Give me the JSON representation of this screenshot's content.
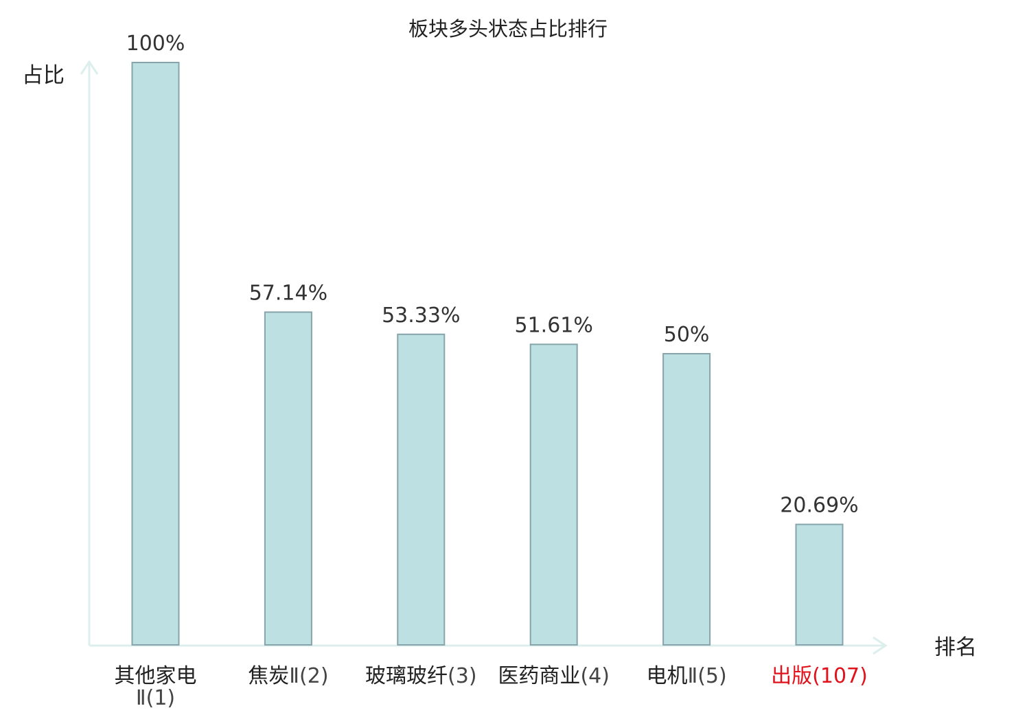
{
  "colors": {
    "bar_fill": "#bde0e3",
    "bar_stroke": "#86a4a9",
    "axis": "#dcefed",
    "text": "#222222",
    "value_label": "#333333",
    "highlight": "#e0121b"
  },
  "chart_data": {
    "type": "bar",
    "title": "板块多头状态占比排行",
    "xlabel": "排名",
    "ylabel": "占比",
    "ylim": [
      0,
      100
    ],
    "grid": false,
    "categories": [
      {
        "name": "其他家电",
        "rank_text": "Ⅱ(1)",
        "highlight": false
      },
      {
        "name": "焦炭",
        "rank_text": "Ⅱ(2)",
        "highlight": false
      },
      {
        "name": "玻璃玻纤",
        "rank_text": "(3)",
        "highlight": false
      },
      {
        "name": "医药商业",
        "rank_text": "(4)",
        "highlight": false
      },
      {
        "name": "电机",
        "rank_text": "Ⅱ(5)",
        "highlight": false
      },
      {
        "name": "出版",
        "rank_text": "(107)",
        "highlight": true
      }
    ],
    "values": [
      100,
      57.14,
      53.33,
      51.61,
      50,
      20.69
    ],
    "value_labels": [
      "100%",
      "57.14%",
      "53.33%",
      "51.61%",
      "50%",
      "20.69%"
    ]
  }
}
